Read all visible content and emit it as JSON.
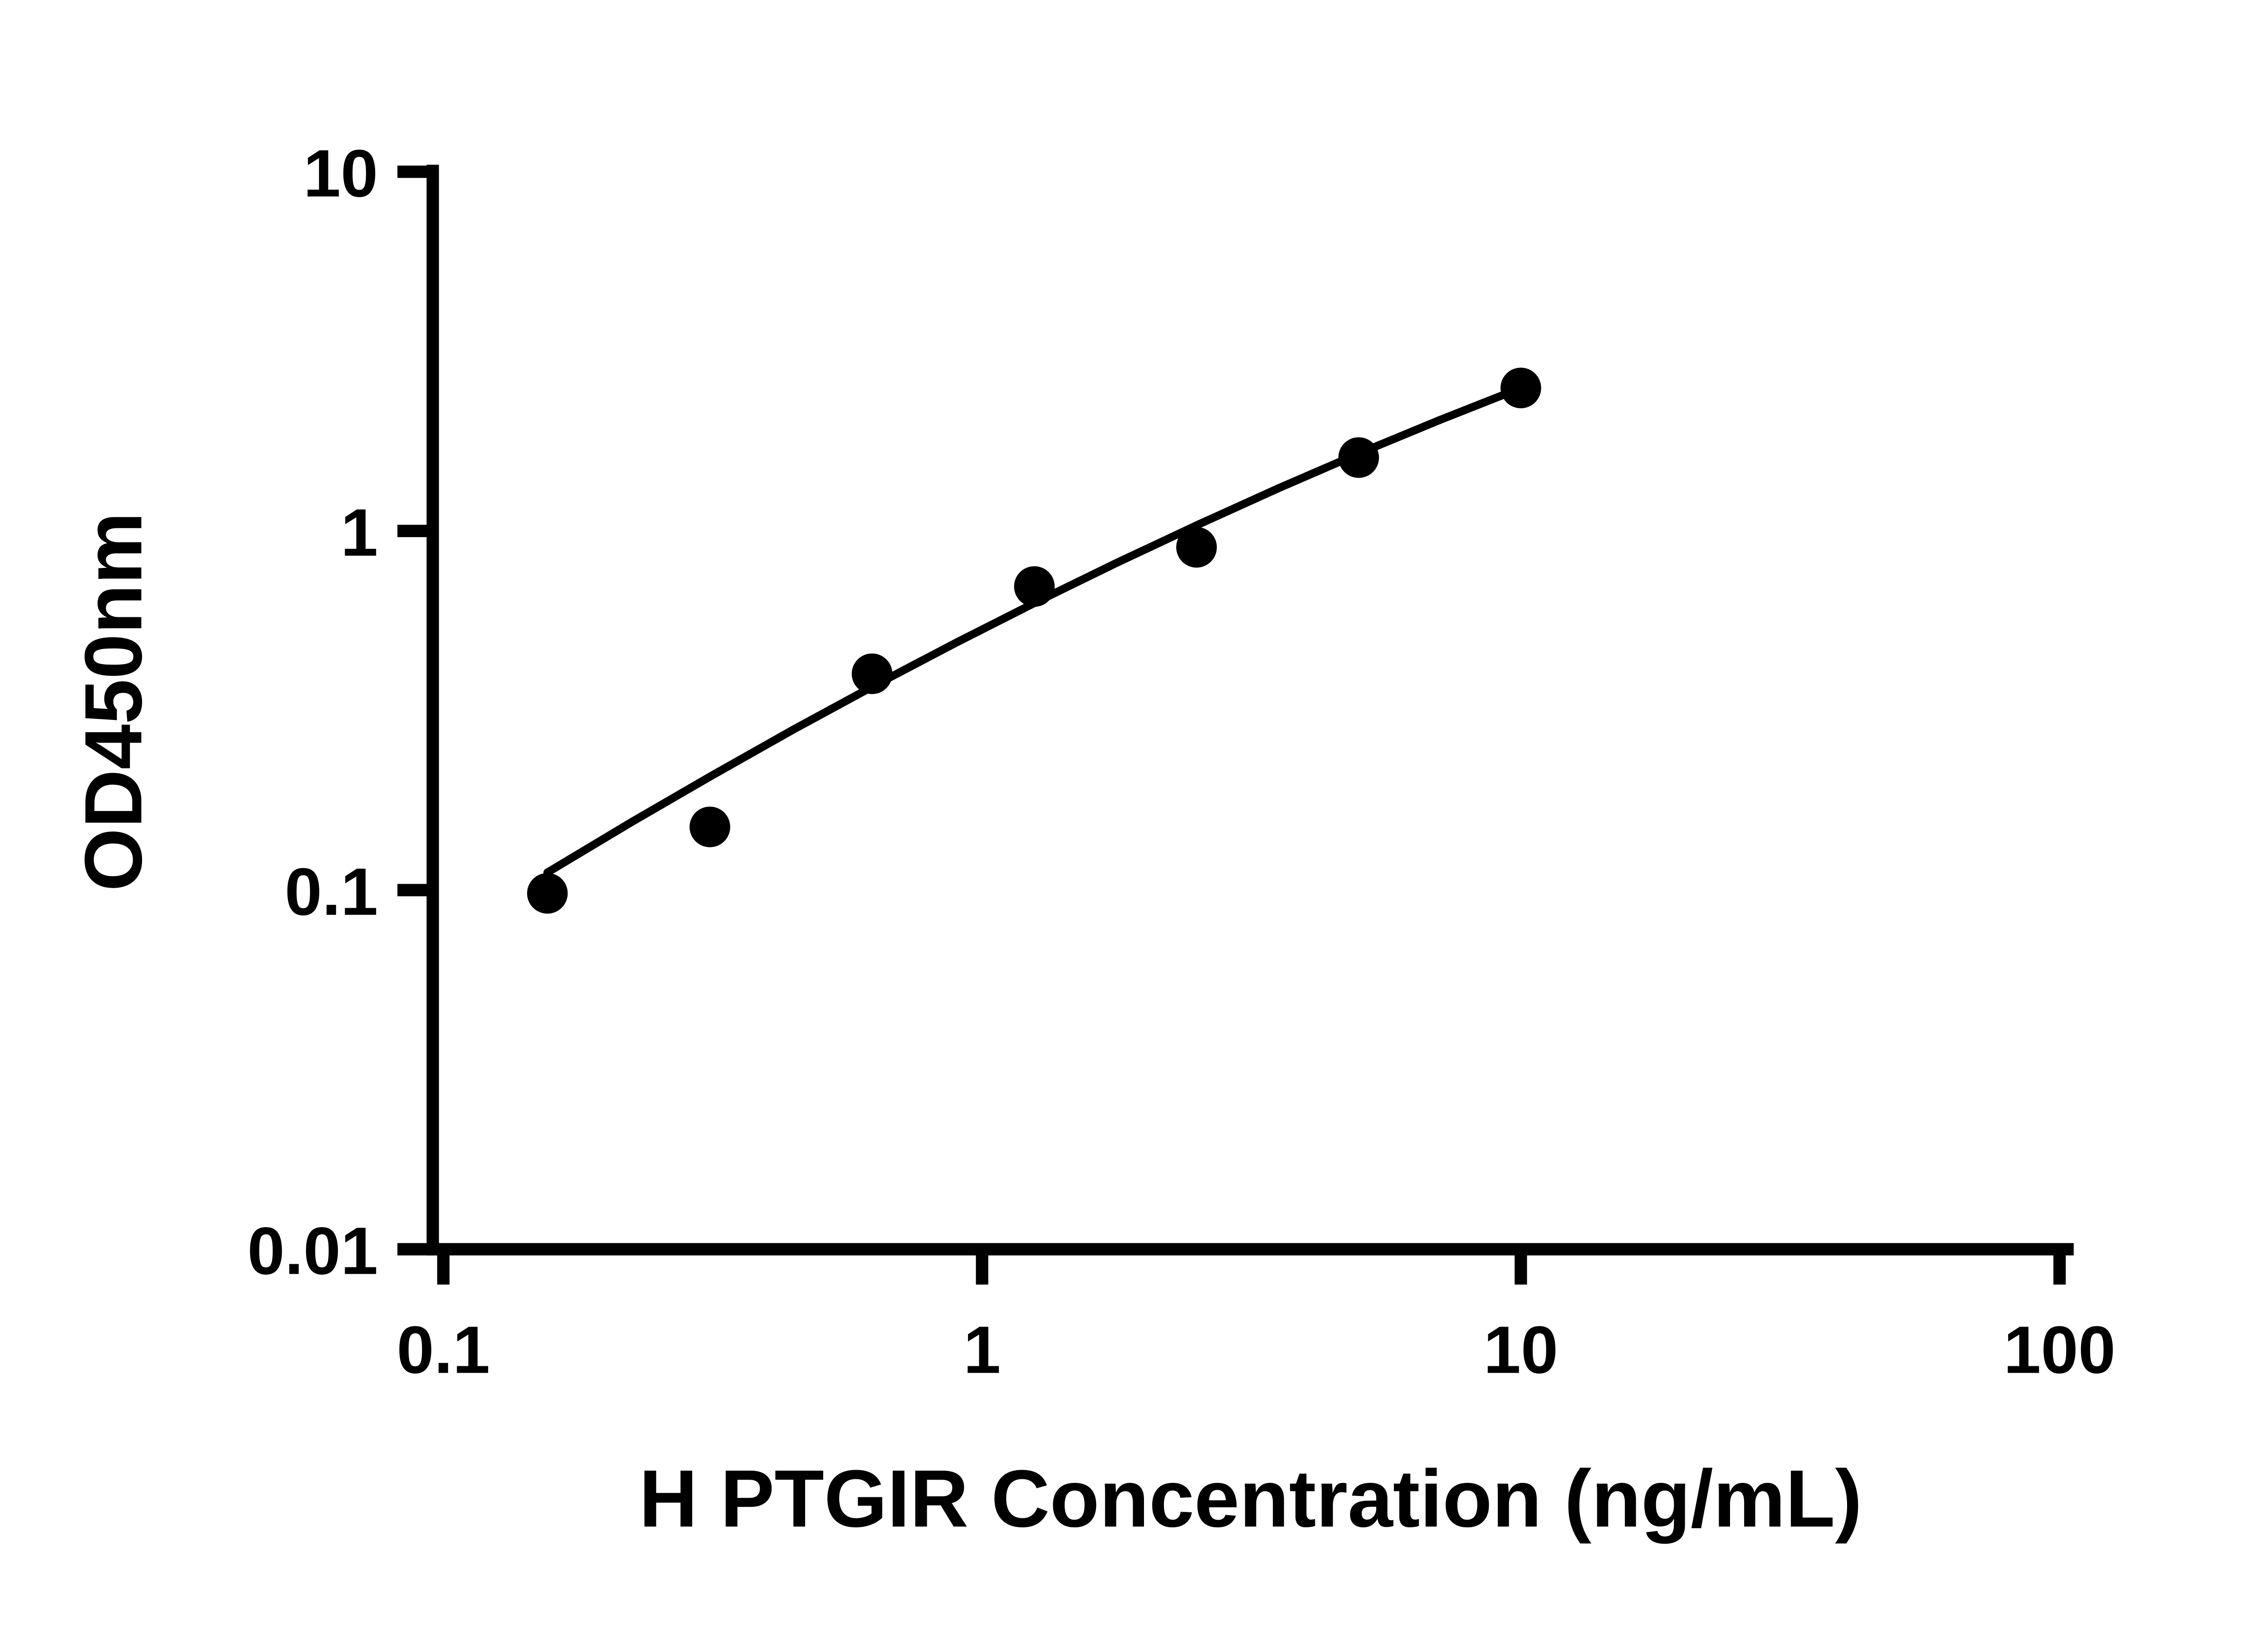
{
  "page": {
    "background": "#ffffff"
  },
  "chart_data": {
    "type": "scatter",
    "title": "",
    "xlabel": "H PTGIR Concentration (ng/mL)",
    "ylabel": "OD450nm",
    "x_scale": "log",
    "y_scale": "log",
    "xlim": [
      0.1,
      100
    ],
    "ylim": [
      0.01,
      10
    ],
    "grid": false,
    "legend": "none",
    "axis_color": "#000000",
    "marker": {
      "shape": "circle",
      "color": "#000000"
    },
    "line": {
      "color": "#000000"
    },
    "x_ticks": [
      {
        "value": 0.1,
        "label": "0.1"
      },
      {
        "value": 1,
        "label": "1"
      },
      {
        "value": 10,
        "label": "10"
      },
      {
        "value": 100,
        "label": "100"
      }
    ],
    "y_ticks": [
      {
        "value": 0.01,
        "label": "0.01"
      },
      {
        "value": 0.1,
        "label": "0.1"
      },
      {
        "value": 1,
        "label": "1"
      },
      {
        "value": 10,
        "label": "10"
      }
    ],
    "points": [
      {
        "x": 0.156,
        "y": 0.098
      },
      {
        "x": 0.3125,
        "y": 0.15
      },
      {
        "x": 0.625,
        "y": 0.4
      },
      {
        "x": 1.25,
        "y": 0.7
      },
      {
        "x": 2.5,
        "y": 0.9
      },
      {
        "x": 5,
        "y": 1.6
      },
      {
        "x": 10,
        "y": 2.5
      }
    ],
    "fit_line_points": [
      {
        "x": 0.156,
        "y": 0.112
      },
      {
        "x": 0.224,
        "y": 0.155
      },
      {
        "x": 0.316,
        "y": 0.209
      },
      {
        "x": 0.447,
        "y": 0.28
      },
      {
        "x": 0.631,
        "y": 0.371
      },
      {
        "x": 0.891,
        "y": 0.487
      },
      {
        "x": 1.259,
        "y": 0.633
      },
      {
        "x": 1.778,
        "y": 0.815
      },
      {
        "x": 2.512,
        "y": 1.04
      },
      {
        "x": 3.548,
        "y": 1.314
      },
      {
        "x": 5.012,
        "y": 1.644
      },
      {
        "x": 7.079,
        "y": 2.037
      },
      {
        "x": 10,
        "y": 2.5
      }
    ]
  }
}
